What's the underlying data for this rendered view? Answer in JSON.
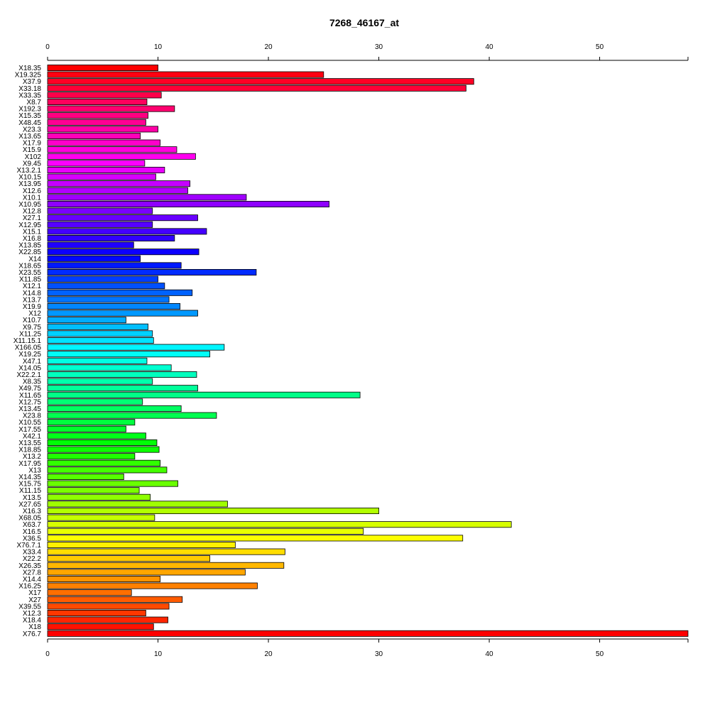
{
  "chart_data": {
    "type": "bar",
    "orientation": "horizontal",
    "title": "7268_46167_at",
    "xlabel": "",
    "ylabel": "",
    "xlim": [
      0,
      58
    ],
    "ticks": [
      0,
      10,
      20,
      30,
      40,
      50
    ],
    "tick_labels": [
      "0",
      "10",
      "20",
      "30",
      "40",
      "50"
    ],
    "axes": [
      "top",
      "bottom"
    ],
    "grid": false,
    "legend": "none",
    "bar_colors": "rainbow gradient from red (top) through yellow, green, cyan, blue, magenta back to red (bottom)",
    "categories": [
      "X18.35",
      "X19.325",
      "X37.9",
      "X33.18",
      "X33.35",
      "X8.7",
      "X192.3",
      "X15.35",
      "X48.45",
      "X23.3",
      "X13.65",
      "X17.9",
      "X15.9",
      "X102",
      "X9.45",
      "X13.2.1",
      "X10.15",
      "X13.95",
      "X12.6",
      "X10.1",
      "X10.95",
      "X12.8",
      "X27.1",
      "X12.95",
      "X15.1",
      "X16.8",
      "X13.85",
      "X22.85",
      "X14",
      "X18.65",
      "X23.55",
      "X11.85",
      "X12.1",
      "X14.8",
      "X13.7",
      "X19.9",
      "X12",
      "X10.7",
      "X9.75",
      "X11.25",
      "X11.15.1",
      "X166.05",
      "X19.25",
      "X47.1",
      "X14.05",
      "X22.2.1",
      "X8.35",
      "X49.75",
      "X11.65",
      "X12.75",
      "X13.45",
      "X23.8",
      "X10.55",
      "X17.55",
      "X42.1",
      "X13.55",
      "X18.85",
      "X13.2",
      "X17.95",
      "X13",
      "X14.35",
      "X15.75",
      "X11.15",
      "X13.5",
      "X27.65",
      "X16.3",
      "X68.05",
      "X63.7",
      "X16.5",
      "X36.5",
      "X76.7.1",
      "X33.4",
      "X22.2",
      "X26.35",
      "X27.8",
      "X14.4",
      "X16.25",
      "X17",
      "X27",
      "X39.55",
      "X12.3",
      "X18.4",
      "X18",
      "X76.7"
    ],
    "values": [
      10.0,
      25.0,
      38.6,
      37.9,
      10.3,
      9.0,
      11.5,
      9.1,
      8.9,
      10.0,
      8.4,
      10.2,
      11.7,
      13.4,
      8.8,
      10.6,
      9.8,
      12.9,
      12.7,
      18.0,
      25.5,
      9.5,
      13.6,
      9.5,
      14.4,
      11.5,
      7.8,
      13.7,
      8.4,
      12.1,
      18.9,
      10.0,
      10.6,
      13.1,
      11.0,
      12.0,
      13.6,
      7.1,
      9.1,
      9.5,
      9.6,
      16.0,
      14.7,
      9.0,
      11.2,
      13.5,
      9.5,
      13.6,
      28.3,
      8.6,
      12.1,
      15.3,
      7.9,
      7.1,
      8.9,
      9.9,
      10.1,
      7.9,
      10.2,
      10.8,
      6.9,
      11.8,
      8.3,
      9.3,
      16.3,
      30.0,
      9.7,
      42.0,
      28.6,
      37.6,
      17.0,
      21.5,
      14.7,
      21.4,
      17.9,
      10.2,
      19.0,
      7.6,
      12.2,
      11.0,
      8.9,
      10.9,
      9.6,
      58.0
    ]
  }
}
